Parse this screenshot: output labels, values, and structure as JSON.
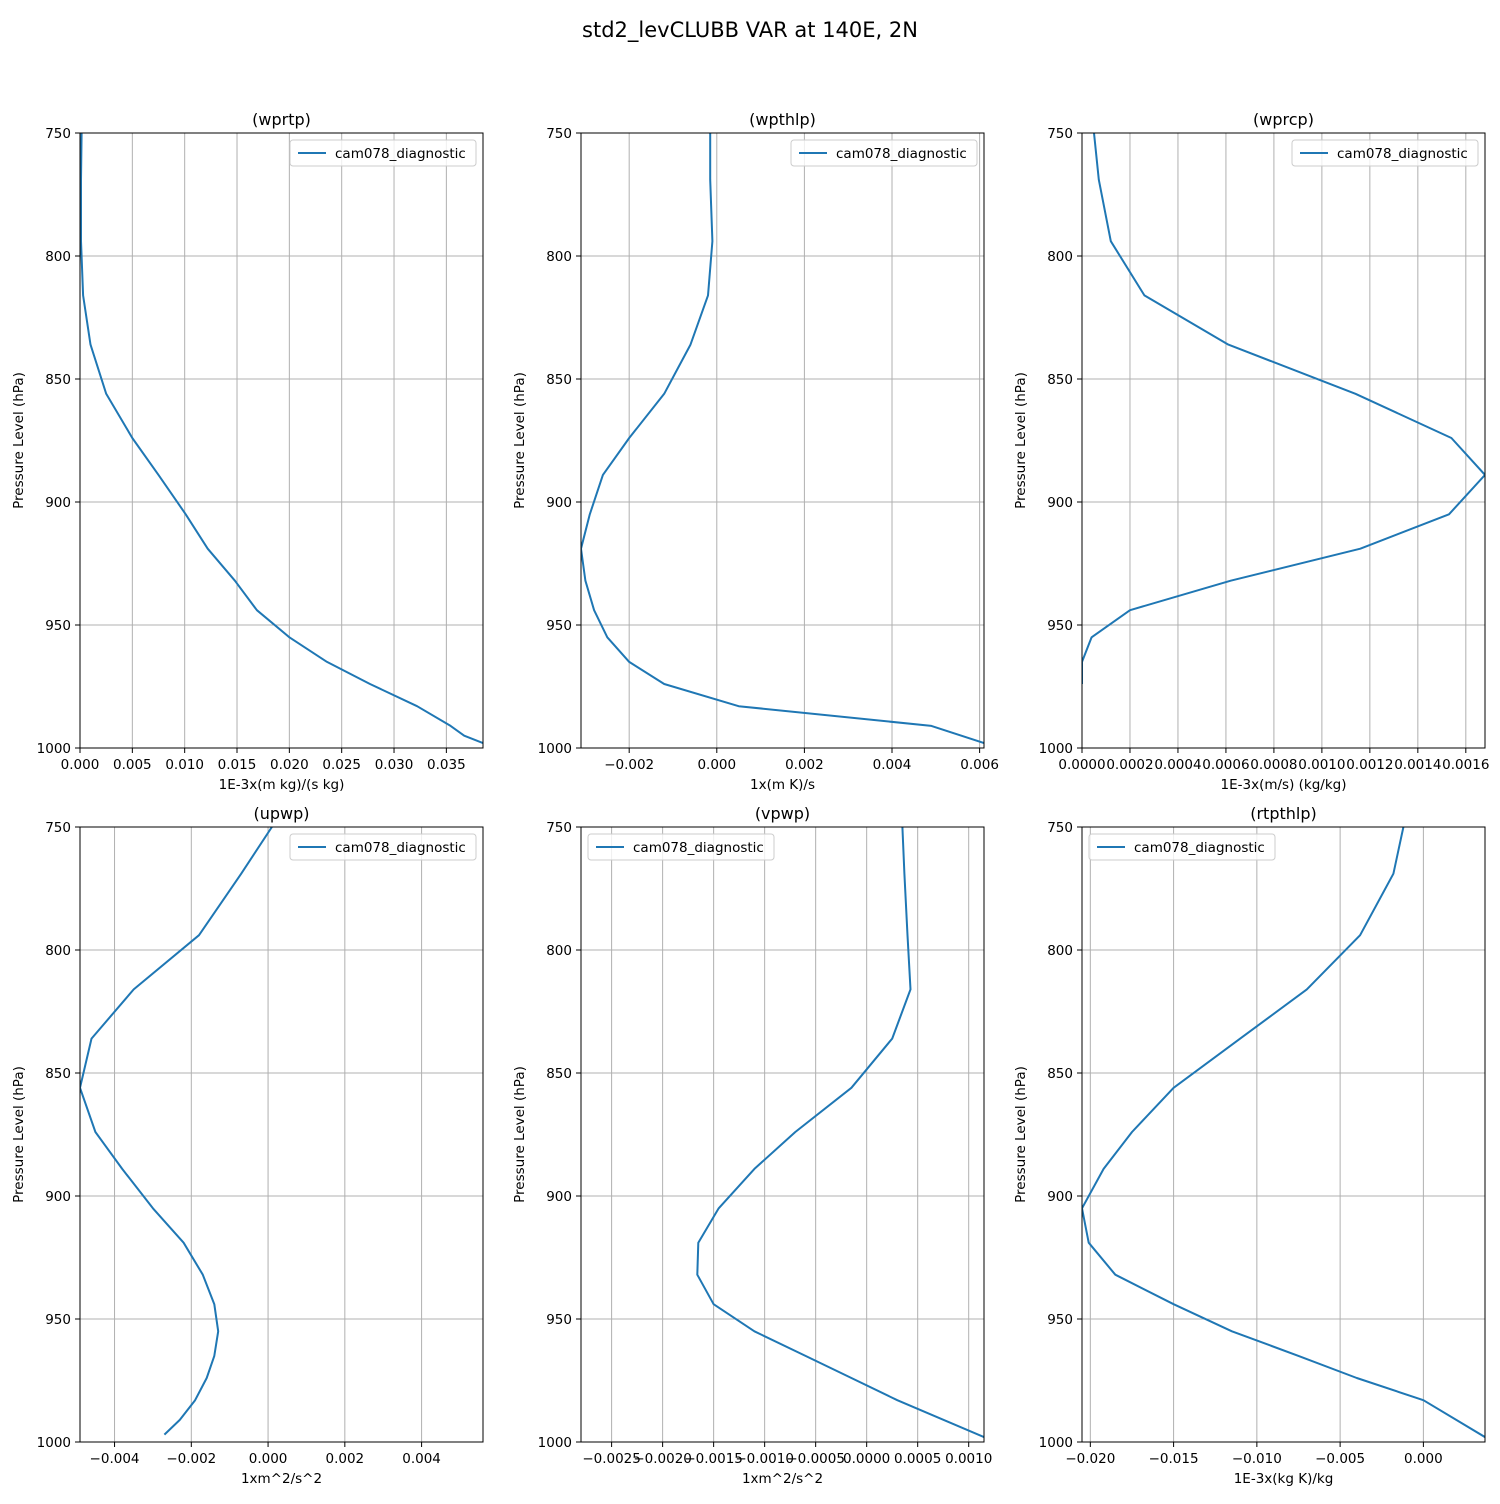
{
  "figure": {
    "suptitle": "std2_levCLUBB VAR at 140E, 2N"
  },
  "chart_data": [
    {
      "type": "line",
      "title": "(wprtp)",
      "xlabel": "1E-3x(m kg)/(s kg)",
      "ylabel": "Pressure Level (hPa)",
      "xlim": [
        0.0,
        0.0385
      ],
      "ylim": [
        1000,
        750
      ],
      "grid": true,
      "legend": "upper right",
      "xticks": [
        0.0,
        0.005,
        0.01,
        0.015,
        0.02,
        0.025,
        0.03,
        0.035
      ],
      "xtick_labels": [
        "0.000",
        "0.005",
        "0.010",
        "0.015",
        "0.020",
        "0.025",
        "0.030",
        "0.035"
      ],
      "yticks": [
        750,
        800,
        850,
        900,
        950,
        1000
      ],
      "ytick_labels": [
        "750",
        "800",
        "850",
        "900",
        "950",
        "1000"
      ],
      "series": [
        {
          "name": "cam078_diagnostic",
          "color": "#1f77b4",
          "x": [
            0.00015,
            0.0001,
            0.0001,
            0.0003,
            0.001,
            0.0025,
            0.005,
            0.0075,
            0.0101,
            0.0122,
            0.0148,
            0.0169,
            0.02,
            0.0236,
            0.0277,
            0.0322,
            0.0354,
            0.0367,
            0.0385
          ],
          "y": [
            750,
            769,
            794,
            816,
            836,
            856,
            874,
            889,
            905,
            919,
            932,
            944,
            955,
            965,
            974,
            983,
            991,
            995,
            998
          ]
        }
      ]
    },
    {
      "type": "line",
      "title": "(wpthlp)",
      "xlabel": "1x(m K)/s",
      "ylabel": "Pressure Level (hPa)",
      "xlim": [
        -0.0031,
        0.0061
      ],
      "ylim": [
        1000,
        750
      ],
      "grid": true,
      "legend": "upper right",
      "xticks": [
        -0.002,
        0.0,
        0.002,
        0.004,
        0.006
      ],
      "xtick_labels": [
        "−0.002",
        "0.000",
        "0.002",
        "0.004",
        "0.006"
      ],
      "yticks": [
        750,
        800,
        850,
        900,
        950,
        1000
      ],
      "ytick_labels": [
        "750",
        "800",
        "850",
        "900",
        "950",
        "1000"
      ],
      "series": [
        {
          "name": "cam078_diagnostic",
          "color": "#1f77b4",
          "x": [
            -0.00015,
            -0.00015,
            -0.0001,
            -0.0002,
            -0.0006,
            -0.0012,
            -0.002,
            -0.0026,
            -0.0029,
            -0.0031,
            -0.003,
            -0.0028,
            -0.0025,
            -0.002,
            -0.0012,
            0.0005,
            0.0049,
            0.0061
          ],
          "y": [
            750,
            769,
            794,
            816,
            836,
            856,
            874,
            889,
            905,
            919,
            932,
            944,
            955,
            965,
            974,
            983,
            991,
            998
          ]
        }
      ]
    },
    {
      "type": "line",
      "title": "(wprcp)",
      "xlabel": "1E-3x(m/s) (kg/kg)",
      "ylabel": "Pressure Level (hPa)",
      "xlim": [
        0.0,
        0.00168
      ],
      "ylim": [
        1000,
        750
      ],
      "grid": true,
      "legend": "upper right",
      "xticks": [
        0.0,
        0.0002,
        0.0004,
        0.0006,
        0.0008,
        0.001,
        0.0012,
        0.0014,
        0.0016
      ],
      "xtick_labels": [
        "0.0000",
        "0.0002",
        "0.0004",
        "0.0006",
        "0.0008",
        "0.0010",
        "0.0012",
        "0.0014",
        "0.0016"
      ],
      "yticks": [
        750,
        800,
        850,
        900,
        950,
        1000
      ],
      "ytick_labels": [
        "750",
        "800",
        "850",
        "900",
        "950",
        "1000"
      ],
      "series": [
        {
          "name": "cam078_diagnostic",
          "color": "#1f77b4",
          "x": [
            5e-05,
            7e-05,
            0.00012,
            0.00026,
            0.00061,
            0.00114,
            0.00154,
            0.00168,
            0.00153,
            0.00116,
            0.00062,
            0.0002,
            4e-05,
            0.0,
            0.0
          ],
          "y": [
            750,
            769,
            794,
            816,
            836,
            856,
            874,
            889,
            905,
            919,
            932,
            944,
            955,
            965,
            974
          ]
        }
      ]
    },
    {
      "type": "line",
      "title": "(upwp)",
      "xlabel": "1xm^2/s^2",
      "ylabel": "Pressure Level (hPa)",
      "xlim": [
        -0.0049,
        0.0056
      ],
      "ylim": [
        1000,
        750
      ],
      "grid": true,
      "legend": "upper right",
      "xticks": [
        -0.004,
        -0.002,
        0.0,
        0.002,
        0.004
      ],
      "xtick_labels": [
        "−0.004",
        "−0.002",
        "0.000",
        "0.002",
        "0.004"
      ],
      "yticks": [
        750,
        800,
        850,
        900,
        950,
        1000
      ],
      "ytick_labels": [
        "750",
        "800",
        "850",
        "900",
        "950",
        "1000"
      ],
      "series": [
        {
          "name": "cam078_diagnostic",
          "color": "#1f77b4",
          "x": [
            0.0001,
            -0.0007,
            -0.0018,
            -0.0035,
            -0.0046,
            -0.0049,
            -0.0045,
            -0.0038,
            -0.003,
            -0.0022,
            -0.0017,
            -0.0014,
            -0.0013,
            -0.0014,
            -0.0016,
            -0.0019,
            -0.0023,
            -0.0027
          ],
          "y": [
            750,
            769,
            794,
            816,
            836,
            856,
            874,
            889,
            905,
            919,
            932,
            944,
            955,
            965,
            974,
            983,
            991,
            997
          ]
        }
      ]
    },
    {
      "type": "line",
      "title": "(vpwp)",
      "xlabel": "1xm^2/s^2",
      "ylabel": "Pressure Level (hPa)",
      "xlim": [
        -0.0028,
        0.00115
      ],
      "ylim": [
        1000,
        750
      ],
      "grid": true,
      "legend": "upper left",
      "xticks": [
        -0.0025,
        -0.002,
        -0.0015,
        -0.001,
        -0.0005,
        0.0,
        0.0005,
        0.001
      ],
      "xtick_labels": [
        "−0.0025",
        "−0.0020",
        "−0.0015",
        "−0.0010",
        "−0.0005",
        "0.0000",
        "0.0005",
        "0.0010"
      ],
      "yticks": [
        750,
        800,
        850,
        900,
        950,
        1000
      ],
      "ytick_labels": [
        "750",
        "800",
        "850",
        "900",
        "950",
        "1000"
      ],
      "series": [
        {
          "name": "cam078_diagnostic",
          "color": "#1f77b4",
          "x": [
            0.00035,
            0.00037,
            0.0004,
            0.00043,
            0.00025,
            -0.00015,
            -0.0007,
            -0.0011,
            -0.00145,
            -0.00165,
            -0.00166,
            -0.0015,
            -0.0011,
            -0.0006,
            -0.00015,
            0.0003,
            0.00115
          ],
          "y": [
            750,
            769,
            794,
            816,
            836,
            856,
            874,
            889,
            905,
            919,
            932,
            944,
            955,
            965,
            974,
            983,
            998
          ]
        }
      ]
    },
    {
      "type": "line",
      "title": "(rtpthlp)",
      "xlabel": "1E-3x(kg K)/kg",
      "ylabel": "Pressure Level (hPa)",
      "xlim": [
        -0.0205,
        0.0037
      ],
      "ylim": [
        1000,
        750
      ],
      "grid": true,
      "legend": "upper left",
      "xticks": [
        -0.02,
        -0.015,
        -0.01,
        -0.005,
        0.0
      ],
      "xtick_labels": [
        "−0.020",
        "−0.015",
        "−0.010",
        "−0.005",
        "0.000"
      ],
      "yticks": [
        750,
        800,
        850,
        900,
        950,
        1000
      ],
      "ytick_labels": [
        "750",
        "800",
        "850",
        "900",
        "950",
        "1000"
      ],
      "series": [
        {
          "name": "cam078_diagnostic",
          "color": "#1f77b4",
          "x": [
            -0.0012,
            -0.0018,
            -0.0038,
            -0.007,
            -0.011,
            -0.015,
            -0.0175,
            -0.0192,
            -0.0205,
            -0.0201,
            -0.0185,
            -0.015,
            -0.0115,
            -0.0075,
            -0.004,
            0.0,
            0.0037
          ],
          "y": [
            750,
            769,
            794,
            816,
            836,
            856,
            874,
            889,
            905,
            919,
            932,
            944,
            955,
            965,
            974,
            983,
            998
          ]
        }
      ]
    }
  ]
}
